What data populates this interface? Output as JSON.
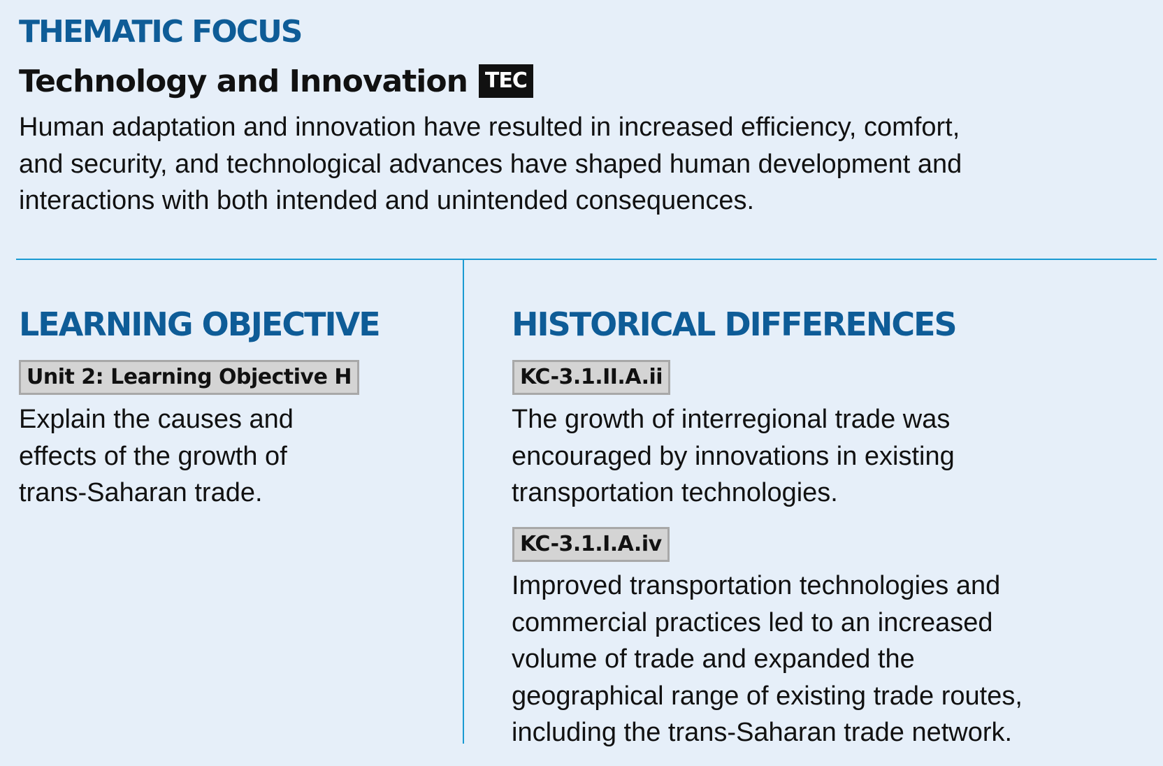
{
  "thematic_focus": {
    "heading": "THEMATIC FOCUS",
    "title": "Technology and Innovation",
    "badge": "TEC",
    "description_lines": [
      "Human adaptation and innovation have resulted in increased efficiency, comfort,",
      "and security, and technological advances have shaped human development and",
      "interactions with both intended and unintended consequences."
    ]
  },
  "learning_objective": {
    "heading": "LEARNING OBJECTIVE",
    "tag": "Unit 2: Learning Objective H",
    "text_lines": [
      "Explain the causes and",
      "effects of the growth of",
      "trans-Saharan trade."
    ]
  },
  "historical_differences": {
    "heading": "HISTORICAL DIFFERENCES",
    "items": [
      {
        "tag": "KC-3.1.II.A.ii",
        "text_lines": [
          "The growth of interregional trade was",
          "encouraged by innovations in existing",
          "transportation technologies."
        ]
      },
      {
        "tag": "KC-3.1.I.A.iv",
        "text_lines": [
          "Improved transportation technologies and",
          "commercial practices led to an increased",
          "volume of trade and expanded the",
          "geographical range of existing trade routes,",
          "including the trans-Saharan trade network."
        ]
      }
    ]
  },
  "colors": {
    "background": "#e6eff9",
    "heading_blue": "#0e5c97",
    "divider_blue": "#1a9ad2",
    "badge_background": "#111111",
    "tag_background": "#d4d4d4",
    "tag_border": "#a8a8a8"
  }
}
